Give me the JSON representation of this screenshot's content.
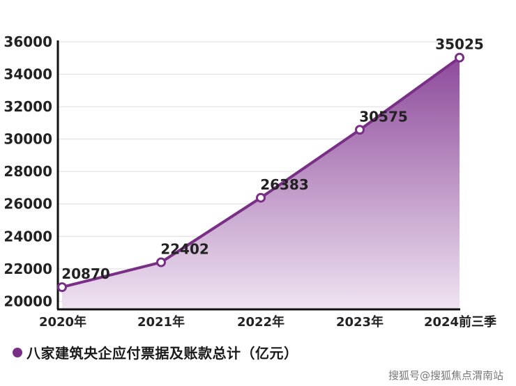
{
  "chart_data": {
    "type": "area",
    "categories": [
      "2020年",
      "2021年",
      "2022年",
      "2023年",
      "2024前三季"
    ],
    "series": [
      {
        "name": "八家建筑央企应付票据及账款总计（亿元）",
        "values": [
          20870,
          22402,
          26383,
          30575,
          35025
        ]
      }
    ],
    "data_labels": [
      "20870",
      "22402",
      "26383",
      "30575",
      "35025"
    ],
    "yticks": [
      "20000",
      "22000",
      "24000",
      "26000",
      "28000",
      "30000",
      "32000",
      "34000",
      "36000"
    ],
    "ylim": [
      19500,
      36000
    ],
    "grid": true,
    "legend": "bottom-left",
    "colors": {
      "line": "#7a2f86",
      "fill_top": "#8e4a9b",
      "fill_bottom": "#efe4f2",
      "marker_fill": "#ffffff"
    }
  },
  "watermark": "搜狐号@搜狐焦点渭南站"
}
